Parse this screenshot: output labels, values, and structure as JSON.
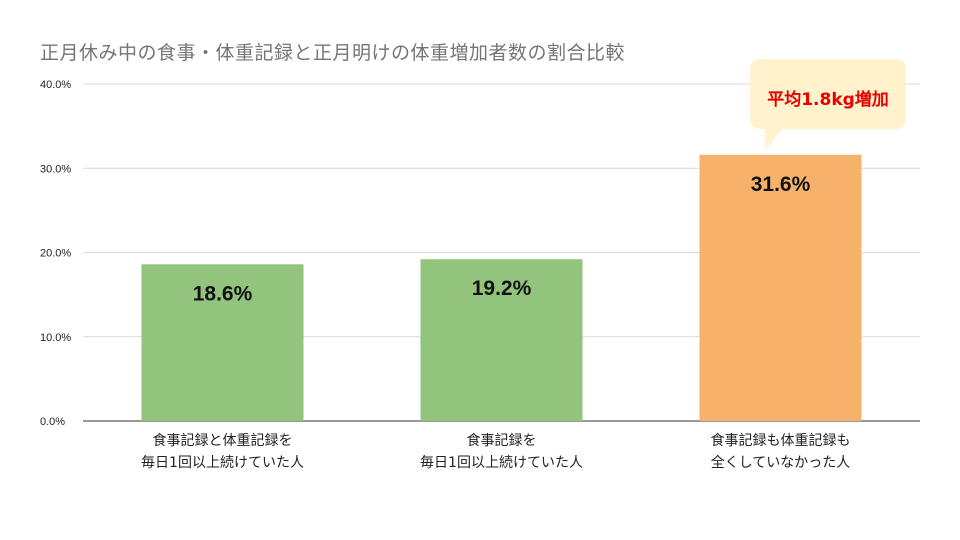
{
  "chart_data": {
    "type": "bar",
    "title": "正月休み中の食事・体重記録と正月明けの体重増加者数の割合比較",
    "categories": [
      [
        "食事記録と体重記録を",
        "毎日1回以上続けていた人"
      ],
      [
        "食事記録を",
        "毎日1回以上続けていた人"
      ],
      [
        "食事記録も体重記録も",
        "全くしていなかった人"
      ]
    ],
    "values": [
      18.6,
      19.2,
      31.6
    ],
    "data_labels": [
      "18.6%",
      "19.2%",
      "31.6%"
    ],
    "bar_colors": [
      "#93c47d",
      "#93c47d",
      "#f6b26b"
    ],
    "ylim": [
      0,
      40
    ],
    "yticks": [
      0,
      10,
      20,
      30,
      40
    ],
    "ytick_labels": [
      "0.0%",
      "10.0%",
      "20.0%",
      "30.0%",
      "40.0%"
    ],
    "grid": true,
    "xlabel": "",
    "ylabel": "",
    "annotation": "平均1.8kg増加"
  }
}
